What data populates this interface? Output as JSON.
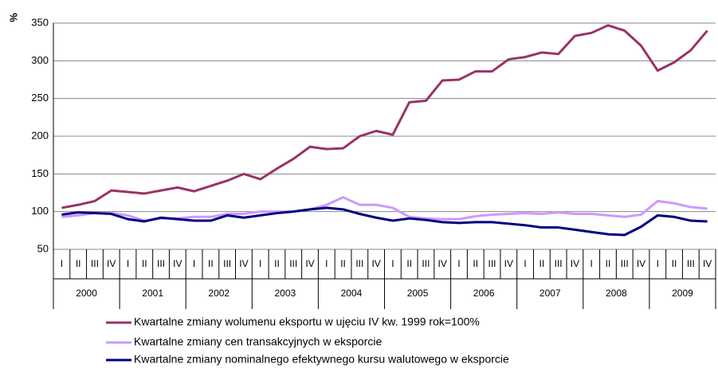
{
  "chart_data": {
    "type": "line",
    "y_label": "%",
    "categories": [
      "I",
      "II",
      "III",
      "IV",
      "I",
      "II",
      "III",
      "IV",
      "I",
      "II",
      "III",
      "IV",
      "I",
      "II",
      "III",
      "IV",
      "I",
      "II",
      "III",
      "IV",
      "I",
      "II",
      "III",
      "IV",
      "I",
      "II",
      "III",
      "IV",
      "I",
      "II",
      "III",
      "IV",
      "I",
      "II",
      "III",
      "IV",
      "I",
      "II",
      "III",
      "IV"
    ],
    "category_groups": [
      "2000",
      "2001",
      "2002",
      "2003",
      "2004",
      "2005",
      "2006",
      "2007",
      "2008",
      "2009"
    ],
    "series": [
      {
        "name": "Kwartalne zmiany wolumenu eksportu w ujęciu IV kw. 1999 rok=100%",
        "color": "#993366",
        "values": [
          105,
          109,
          114,
          128,
          126,
          124,
          128,
          132,
          127,
          134,
          141,
          150,
          143,
          157,
          170,
          186,
          183,
          184,
          200,
          207,
          202,
          245,
          247,
          274,
          275,
          286,
          286,
          302,
          305,
          311,
          309,
          333,
          337,
          347,
          340,
          320,
          287,
          298,
          314,
          340
        ]
      },
      {
        "name": "Kwartalne zmiany cen transakcyjnych w eksporcie",
        "color": "#CC99FF",
        "values": [
          93,
          95,
          98,
          98,
          95,
          88,
          91,
          91,
          93,
          93,
          97,
          97,
          100,
          100,
          100,
          103,
          109,
          119,
          109,
          109,
          105,
          93,
          91,
          90,
          90,
          94,
          96,
          97,
          98,
          97,
          99,
          97,
          97,
          95,
          93,
          96,
          114,
          111,
          106,
          104
        ]
      },
      {
        "name": "Kwartalne zmiany nominalnego efektywnego kursu walutowego w eksporcie",
        "color": "#000080",
        "values": [
          96,
          99,
          98,
          97,
          90,
          87,
          92,
          90,
          88,
          88,
          95,
          92,
          95,
          98,
          100,
          103,
          105,
          103,
          97,
          92,
          88,
          91,
          89,
          86,
          85,
          86,
          86,
          84,
          82,
          79,
          79,
          76,
          73,
          70,
          69,
          80,
          95,
          93,
          88,
          87
        ]
      }
    ],
    "ylim": [
      50,
      350
    ],
    "yticks": [
      50,
      100,
      150,
      200,
      250,
      300,
      350
    ],
    "grid": true
  }
}
